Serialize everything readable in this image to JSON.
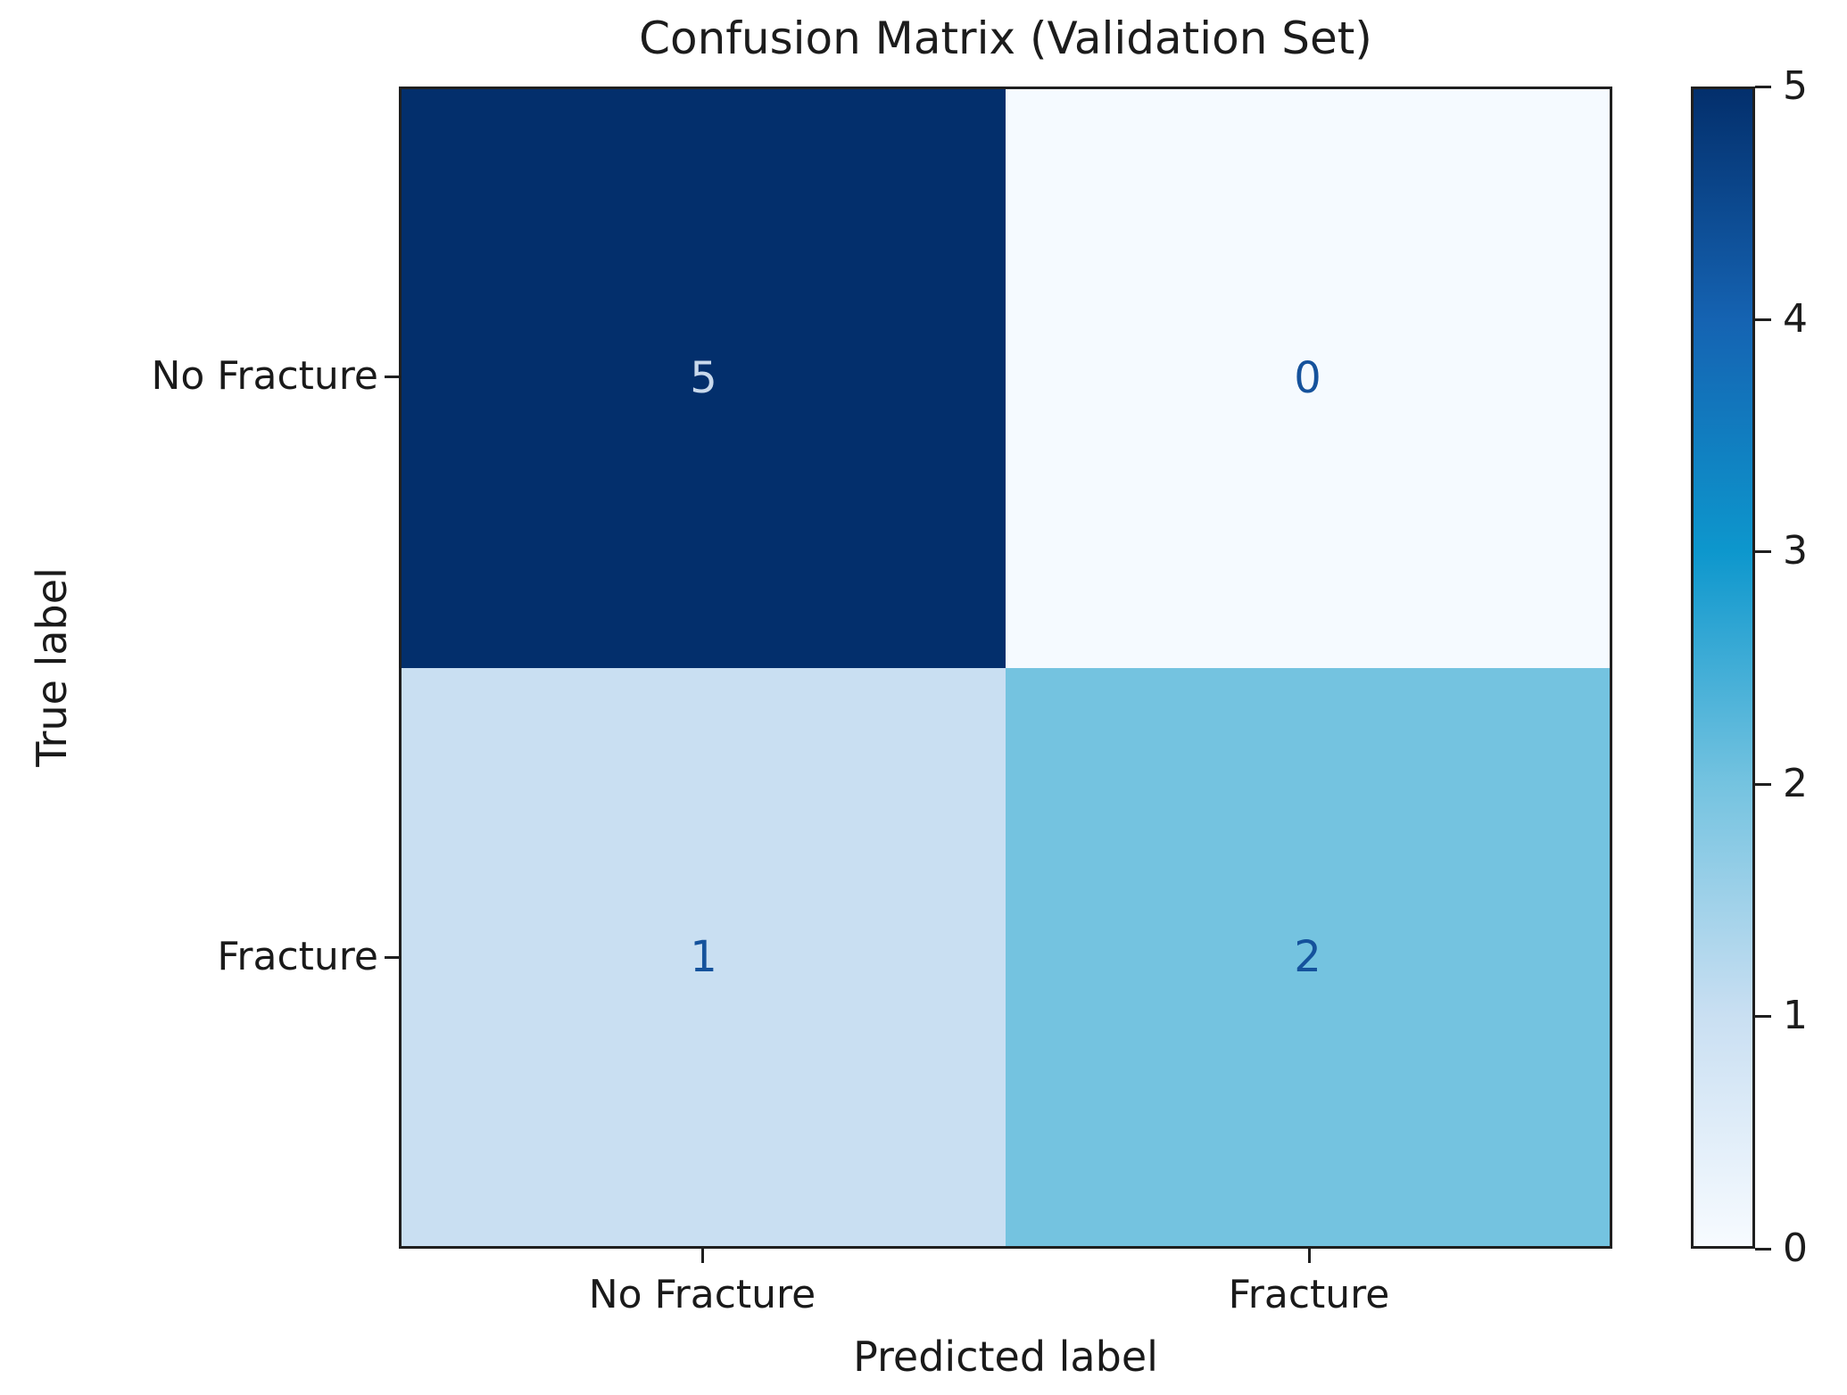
{
  "title": "Confusion Matrix (Validation Set)",
  "axes": {
    "xlabel": "Predicted label",
    "ylabel": "True label",
    "x_ticks": [
      "No Fracture",
      "Fracture"
    ],
    "y_ticks": [
      "No Fracture",
      "Fracture"
    ]
  },
  "cells": [
    {
      "row": "No Fracture",
      "col": "No Fracture",
      "value": "5",
      "bg": "#032f6c",
      "fg": "#c9d9ec"
    },
    {
      "row": "No Fracture",
      "col": "Fracture",
      "value": "0",
      "bg": "#f5faff",
      "fg": "#15529c"
    },
    {
      "row": "Fracture",
      "col": "No Fracture",
      "value": "1",
      "bg": "#c9dff2",
      "fg": "#15529c"
    },
    {
      "row": "Fracture",
      "col": "Fracture",
      "value": "2",
      "bg": "#74c3e0",
      "fg": "#15529c"
    }
  ],
  "colorbar": {
    "min": 0,
    "max": 5,
    "ticks": [
      5,
      4,
      3,
      2,
      1,
      0
    ],
    "gradient_bottom_to_top": [
      "#f7fbff",
      "#c9dff2",
      "#74c3e0",
      "#0d97cd",
      "#1563b2",
      "#032f6c"
    ]
  },
  "colors": {
    "spine": "#1f1f1f",
    "text": "#1c1c1c",
    "background": "#ffffff"
  },
  "chart_data": {
    "type": "heatmap",
    "title": "Confusion Matrix (Validation Set)",
    "xlabel": "Predicted label",
    "ylabel": "True label",
    "x_categories": [
      "No Fracture",
      "Fracture"
    ],
    "y_categories": [
      "No Fracture",
      "Fracture"
    ],
    "matrix": [
      [
        5,
        0
      ],
      [
        1,
        2
      ]
    ],
    "colormap": "Blues",
    "value_range": [
      0,
      5
    ],
    "colorbar_ticks": [
      0,
      1,
      2,
      3,
      4,
      5
    ],
    "colorbar_position": "right",
    "grid": false,
    "annotations": [
      {
        "row": 0,
        "col": 0,
        "text": "5"
      },
      {
        "row": 0,
        "col": 1,
        "text": "0"
      },
      {
        "row": 1,
        "col": 0,
        "text": "1"
      },
      {
        "row": 1,
        "col": 1,
        "text": "2"
      }
    ]
  }
}
